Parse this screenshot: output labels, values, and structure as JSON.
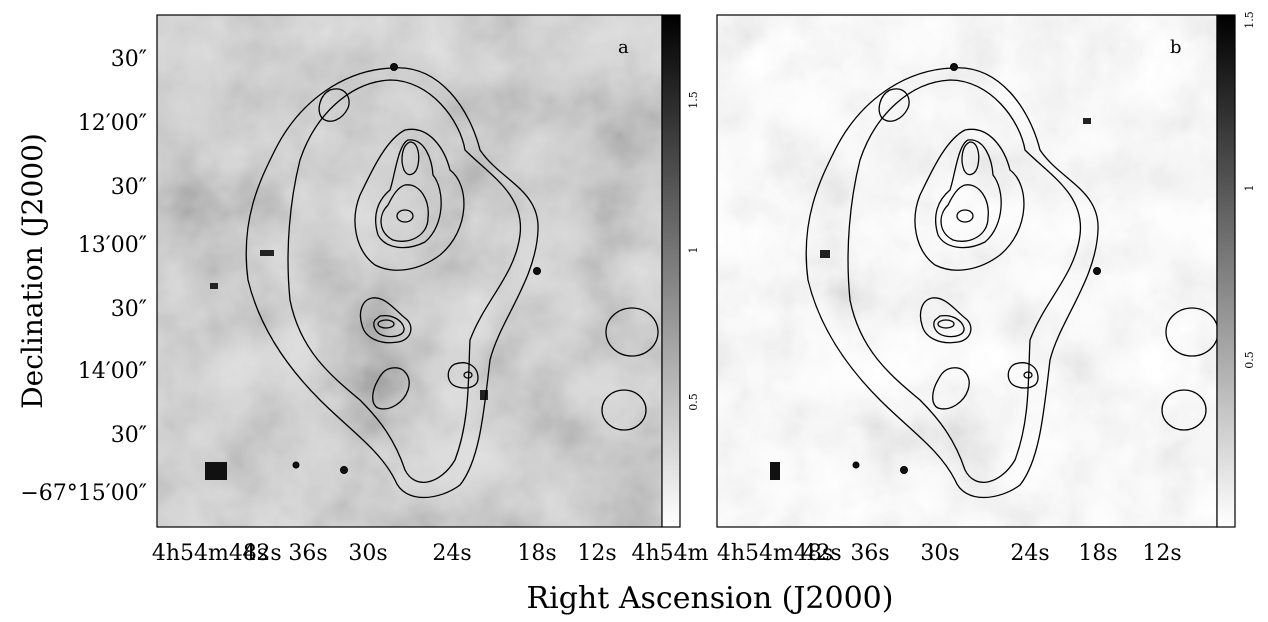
{
  "figure": {
    "y_axis_label": "Declination (J2000)",
    "x_axis_label": "Right Ascension (J2000)",
    "dec_ticks": [
      "30″",
      "12′00″",
      "30″",
      "13′00″",
      "30″",
      "14′00″",
      "30″",
      "−67°15′00″"
    ],
    "ra_ticks_left": [
      "4h54m48s",
      "42s",
      "36s",
      "30s",
      "24s",
      "18s",
      "12s",
      "4h54m"
    ],
    "ra_ticks_right": [
      "4h54m48s",
      "42s",
      "36s",
      "30s",
      "24s",
      "18s",
      "12s"
    ],
    "panels": [
      {
        "letter": "a",
        "colorbar_ticks": [
          "1.5",
          "1",
          "0.5"
        ]
      },
      {
        "letter": "b",
        "colorbar_ticks": [
          "1.5",
          "1",
          "0.5"
        ]
      }
    ]
  }
}
